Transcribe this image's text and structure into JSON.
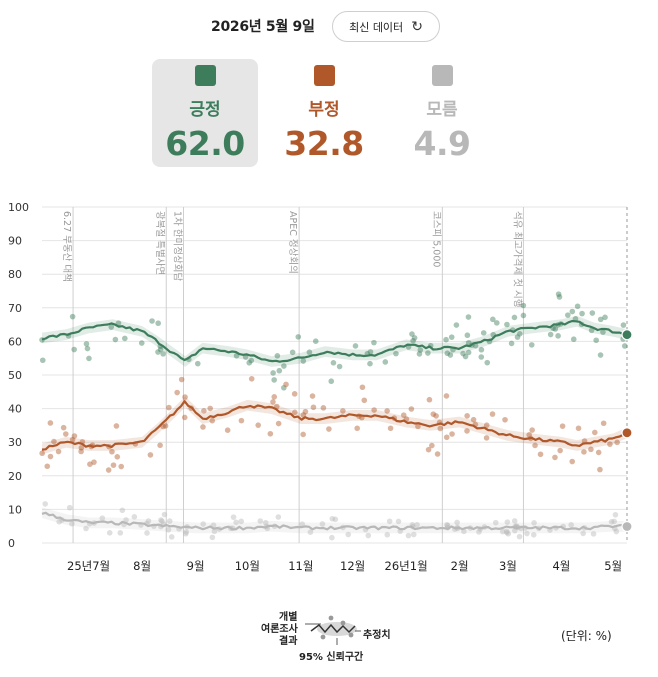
{
  "header": {
    "date": "2026년 5월 9일",
    "refresh_label": "최신 데이터",
    "refresh_icon": "refresh-icon"
  },
  "cards": [
    {
      "label": "긍정",
      "value": "62.0",
      "color": "#3d7d5c",
      "selected": true
    },
    {
      "label": "부정",
      "value": "32.8",
      "color": "#b0582a",
      "selected": false
    },
    {
      "label": "모름",
      "value": "4.9",
      "color": "#b8b8b8",
      "selected": false
    }
  ],
  "chart_data": {
    "type": "line",
    "ylim": [
      0,
      100
    ],
    "yticks": [
      0,
      10,
      20,
      30,
      40,
      50,
      60,
      70,
      80,
      90,
      100
    ],
    "xlim": [
      "2025-06-04",
      "2026-05-09"
    ],
    "xticks": [
      {
        "date": "2025-07-01",
        "label": "25년7월"
      },
      {
        "date": "2025-08-01",
        "label": "8월"
      },
      {
        "date": "2025-09-01",
        "label": "9월"
      },
      {
        "date": "2025-10-01",
        "label": "10월"
      },
      {
        "date": "2025-11-01",
        "label": "11월"
      },
      {
        "date": "2025-12-01",
        "label": "12월"
      },
      {
        "date": "2026-01-01",
        "label": "26년1월"
      },
      {
        "date": "2026-02-01",
        "label": "2월"
      },
      {
        "date": "2026-03-01",
        "label": "3월"
      },
      {
        "date": "2026-04-01",
        "label": "4월"
      },
      {
        "date": "2026-05-01",
        "label": "5월"
      }
    ],
    "events": [
      {
        "date": "2025-06-22",
        "label": "6.27 부동산 대책"
      },
      {
        "date": "2025-08-15",
        "label": "광복절 특별사면"
      },
      {
        "date": "2025-08-25",
        "label": "1차 한미정상회담"
      },
      {
        "date": "2025-10-31",
        "label": "APEC 정상회의"
      },
      {
        "date": "2026-01-22",
        "label": "코스피 5,000"
      },
      {
        "date": "2026-03-10",
        "label": "석유 최고가격제 첫 시행"
      }
    ],
    "series": [
      {
        "name": "긍정",
        "color": "#3d7d5c",
        "x": [
          "2025-06-04",
          "2025-06-18",
          "2025-07-01",
          "2025-07-15",
          "2025-08-01",
          "2025-08-10",
          "2025-08-18",
          "2025-08-26",
          "2025-09-05",
          "2025-09-20",
          "2025-10-01",
          "2025-10-15",
          "2025-11-01",
          "2025-11-15",
          "2025-12-01",
          "2025-12-15",
          "2026-01-01",
          "2026-01-15",
          "2026-02-01",
          "2026-02-15",
          "2026-03-01",
          "2026-03-15",
          "2026-04-01",
          "2026-04-10",
          "2026-04-20",
          "2026-05-01",
          "2026-05-09"
        ],
        "y": [
          61,
          62,
          64,
          65,
          63,
          60,
          57,
          54,
          58,
          57,
          56,
          54,
          55,
          57,
          56,
          56,
          59,
          58,
          58,
          60,
          63,
          64,
          65,
          66,
          64,
          63,
          62.0
        ]
      },
      {
        "name": "부정",
        "color": "#b0582a",
        "x": [
          "2025-06-04",
          "2025-06-18",
          "2025-07-01",
          "2025-07-15",
          "2025-08-01",
          "2025-08-10",
          "2025-08-18",
          "2025-08-26",
          "2025-09-05",
          "2025-09-20",
          "2025-10-01",
          "2025-10-15",
          "2025-11-01",
          "2025-11-15",
          "2025-12-01",
          "2025-12-15",
          "2026-01-01",
          "2026-01-15",
          "2026-02-01",
          "2026-02-15",
          "2026-03-01",
          "2026-03-15",
          "2026-04-01",
          "2026-04-10",
          "2026-04-20",
          "2026-05-01",
          "2026-05-09"
        ],
        "y": [
          28,
          30,
          29,
          29,
          30,
          34,
          38,
          42,
          37,
          39,
          41,
          40,
          37,
          37,
          38,
          38,
          36,
          35,
          36,
          34,
          32,
          31,
          30,
          29,
          30,
          31,
          32.8
        ]
      },
      {
        "name": "모름",
        "color": "#b8b8b8",
        "x": [
          "2025-06-04",
          "2025-06-18",
          "2025-07-01",
          "2025-07-15",
          "2025-08-01",
          "2025-08-15",
          "2025-09-01",
          "2025-09-20",
          "2025-10-01",
          "2025-10-15",
          "2025-11-01",
          "2025-11-15",
          "2025-12-01",
          "2025-12-15",
          "2026-01-01",
          "2026-01-15",
          "2026-02-01",
          "2026-02-15",
          "2026-03-01",
          "2026-03-15",
          "2026-04-01",
          "2026-04-15",
          "2026-05-01",
          "2026-05-09"
        ],
        "y": [
          9,
          7,
          6,
          6,
          5.5,
          5,
          4.5,
          4.5,
          4.5,
          5,
          4.5,
          4.5,
          4.5,
          4.5,
          4.5,
          4.5,
          4.5,
          4.5,
          4.5,
          4.5,
          4.5,
          4.5,
          5,
          4.9
        ]
      }
    ]
  },
  "legend": {
    "individual": [
      "개별",
      "여론조사",
      "결과"
    ],
    "estimate": "추정치",
    "ci": "95% 신뢰구간"
  },
  "unit": "(단위: %)"
}
